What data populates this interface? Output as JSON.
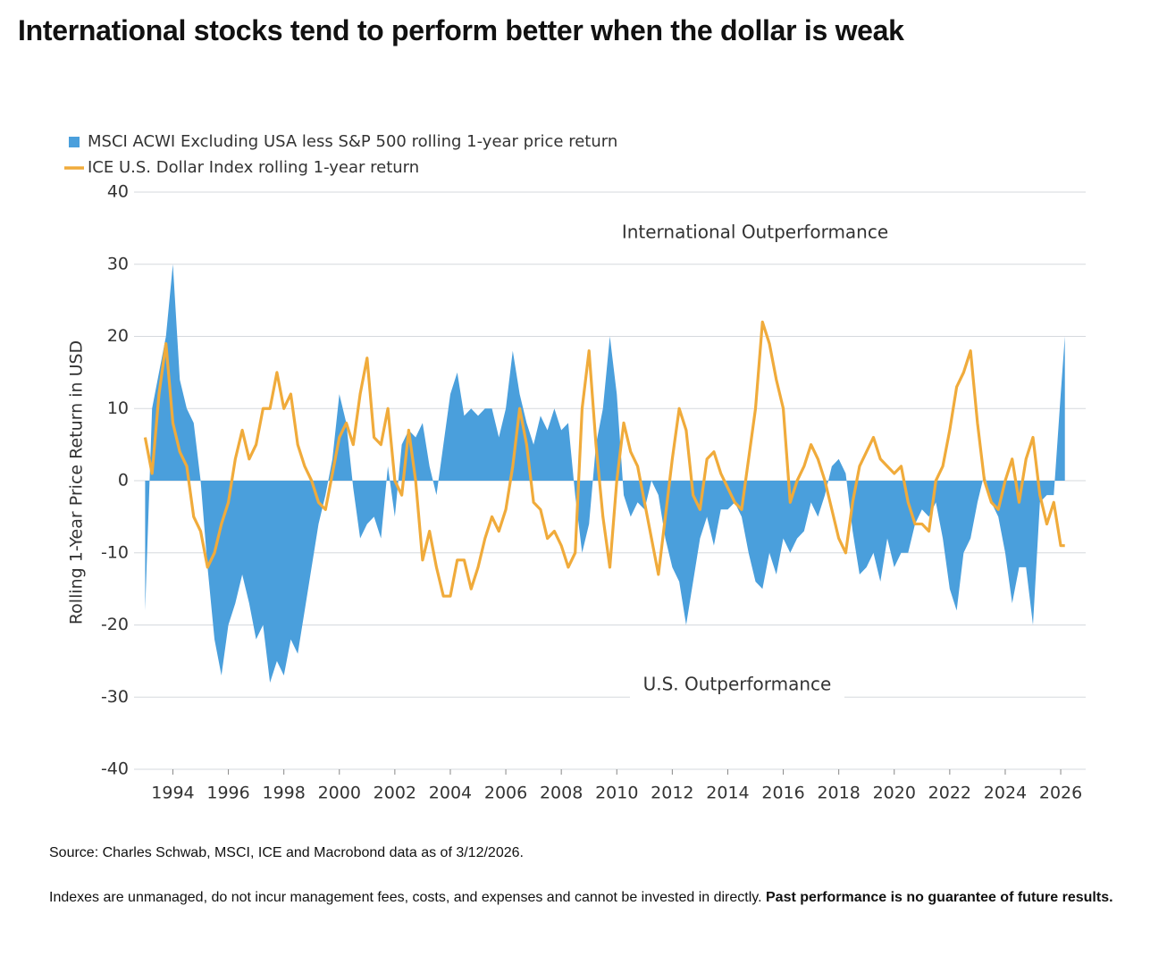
{
  "chart_data": {
    "type": "line",
    "title": "International stocks tend to perform better when the dollar is weak",
    "ylabel": "Rolling 1-Year Price Return in USD",
    "annotations": [
      "International Outperformance",
      "U.S. Outperformance"
    ],
    "source": "Source: Charles Schwab, MSCI, ICE and Macrobond data as of 3/12/2026.",
    "note": "Indexes are unmanaged, do not incur management fees, costs, and expenses and cannot be invested in directly.",
    "note_bold": "Past performance is no guarantee of future results.",
    "legend": "top-left",
    "grid": true,
    "xlim": [
      1992.6,
      2026.9
    ],
    "xticks": [
      1994,
      1996,
      1998,
      2000,
      2002,
      2004,
      2006,
      2008,
      2010,
      2012,
      2014,
      2016,
      2018,
      2020,
      2022,
      2024,
      2026
    ],
    "ylim": [
      -40,
      40
    ],
    "yticks": [
      -40,
      -30,
      -20,
      -10,
      0,
      10,
      20,
      30,
      40
    ],
    "x": [
      1993,
      1993.25,
      1993.5,
      1993.75,
      1994,
      1994.25,
      1994.5,
      1994.75,
      1995,
      1995.25,
      1995.5,
      1995.75,
      1996,
      1996.25,
      1996.5,
      1996.75,
      1997,
      1997.25,
      1997.5,
      1997.75,
      1998,
      1998.25,
      1998.5,
      1998.75,
      1999,
      1999.25,
      1999.5,
      1999.75,
      2000,
      2000.25,
      2000.5,
      2000.75,
      2001,
      2001.25,
      2001.5,
      2001.75,
      2002,
      2002.25,
      2002.5,
      2002.75,
      2003,
      2003.25,
      2003.5,
      2003.75,
      2004,
      2004.25,
      2004.5,
      2004.75,
      2005,
      2005.25,
      2005.5,
      2005.75,
      2006,
      2006.25,
      2006.5,
      2006.75,
      2007,
      2007.25,
      2007.5,
      2007.75,
      2008,
      2008.25,
      2008.5,
      2008.75,
      2009,
      2009.25,
      2009.5,
      2009.75,
      2010,
      2010.25,
      2010.5,
      2010.75,
      2011,
      2011.25,
      2011.5,
      2011.75,
      2012,
      2012.25,
      2012.5,
      2012.75,
      2013,
      2013.25,
      2013.5,
      2013.75,
      2014,
      2014.25,
      2014.5,
      2014.75,
      2015,
      2015.25,
      2015.5,
      2015.75,
      2016,
      2016.25,
      2016.5,
      2016.75,
      2017,
      2017.25,
      2017.5,
      2017.75,
      2018,
      2018.25,
      2018.5,
      2018.75,
      2019,
      2019.25,
      2019.5,
      2019.75,
      2020,
      2020.25,
      2020.5,
      2020.75,
      2021,
      2021.25,
      2021.5,
      2021.75,
      2022,
      2022.25,
      2022.5,
      2022.75,
      2023,
      2023.25,
      2023.5,
      2023.75,
      2024,
      2024.25,
      2024.5,
      2024.75,
      2025,
      2025.25,
      2025.5,
      2025.75,
      2026,
      2026.15
    ],
    "series": [
      {
        "name": "MSCI ACWI Excluding USA less S&P 500 rolling 1-year price return",
        "type": "area",
        "color": "#4a9fdc",
        "values": [
          -18,
          10,
          15,
          20,
          30,
          14,
          10,
          8,
          0,
          -12,
          -22,
          -27,
          -20,
          -17,
          -13,
          -17,
          -22,
          -20,
          -28,
          -25,
          -27,
          -22,
          -24,
          -18,
          -12,
          -6,
          -2,
          3,
          12,
          8,
          -1,
          -8,
          -6,
          -5,
          -8,
          2,
          -5,
          5,
          7,
          6,
          8,
          2,
          -2,
          5,
          12,
          15,
          9,
          10,
          9,
          10,
          10,
          6,
          10,
          18,
          12,
          8,
          5,
          9,
          7,
          10,
          7,
          8,
          -2,
          -10,
          -6,
          5,
          10,
          20,
          12,
          -2,
          -5,
          -3,
          -4,
          0,
          -2,
          -8,
          -12,
          -14,
          -20,
          -14,
          -8,
          -5,
          -9,
          -4,
          -4,
          -3,
          -5,
          -10,
          -14,
          -15,
          -10,
          -13,
          -8,
          -10,
          -8,
          -7,
          -3,
          -5,
          -2,
          2,
          3,
          1,
          -7,
          -13,
          -12,
          -10,
          -14,
          -8,
          -12,
          -10,
          -10,
          -6,
          -4,
          -5,
          -3,
          -8,
          -15,
          -18,
          -10,
          -8,
          -3,
          1,
          -3,
          -5,
          -10,
          -17,
          -12,
          -12,
          -20,
          -3,
          -2,
          -2,
          12,
          20
        ]
      },
      {
        "name": "ICE U.S. Dollar Index rolling 1-year return",
        "type": "line",
        "color": "#f0ab3b",
        "values": [
          6,
          1,
          12,
          19,
          8,
          4,
          2,
          -5,
          -7,
          -12,
          -10,
          -6,
          -3,
          3,
          7,
          3,
          5,
          10,
          10,
          15,
          10,
          12,
          5,
          2,
          0,
          -3,
          -4,
          1,
          6,
          8,
          5,
          12,
          17,
          6,
          5,
          10,
          0,
          -2,
          7,
          0,
          -11,
          -7,
          -12,
          -16,
          -16,
          -11,
          -11,
          -15,
          -12,
          -8,
          -5,
          -7,
          -4,
          2,
          10,
          5,
          -3,
          -4,
          -8,
          -7,
          -9,
          -12,
          -10,
          10,
          18,
          5,
          -5,
          -12,
          0,
          8,
          4,
          2,
          -3,
          -8,
          -13,
          -5,
          3,
          10,
          7,
          -2,
          -4,
          3,
          4,
          1,
          -1,
          -3,
          -4,
          3,
          10,
          22,
          19,
          14,
          10,
          -3,
          0,
          2,
          5,
          3,
          0,
          -4,
          -8,
          -10,
          -3,
          2,
          4,
          6,
          3,
          2,
          1,
          2,
          -3,
          -6,
          -6,
          -7,
          0,
          2,
          7,
          13,
          15,
          18,
          8,
          0,
          -3,
          -4,
          0,
          3,
          -3,
          3,
          6,
          -2,
          -6,
          -3,
          -9,
          -9
        ]
      }
    ]
  }
}
